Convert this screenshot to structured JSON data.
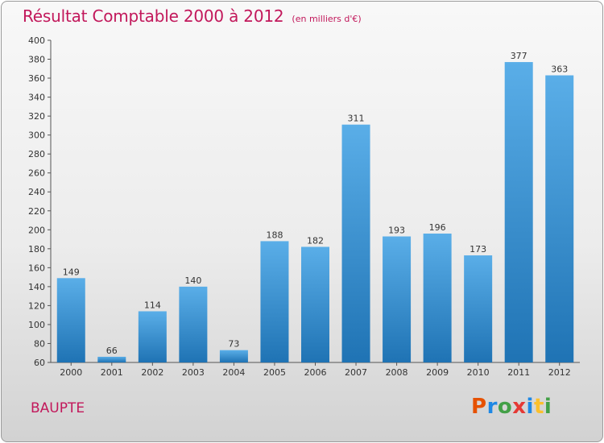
{
  "header": {
    "title": "Résultat Comptable 2000 à 2012",
    "subtitle": "(en milliers d'€)"
  },
  "footer": {
    "commune": "BAUPTE",
    "logo_text": "Proxiti",
    "logo_colors": [
      "#e65100",
      "#1e88e5",
      "#43a047",
      "#e53935",
      "#1e88e5",
      "#fbc02d",
      "#43a047"
    ]
  },
  "colors": {
    "title": "#c2185b",
    "bar_top": "#5aaee8",
    "bar_bottom": "#1f73b4"
  },
  "chart_data": {
    "type": "bar",
    "title": "Résultat Comptable 2000 à 2012",
    "subtitle": "(en milliers d'€)",
    "xlabel": "",
    "ylabel": "",
    "categories": [
      "2000",
      "2001",
      "2002",
      "2003",
      "2004",
      "2005",
      "2006",
      "2007",
      "2008",
      "2009",
      "2010",
      "2011",
      "2012"
    ],
    "values": [
      149,
      66,
      114,
      140,
      73,
      188,
      182,
      311,
      193,
      196,
      173,
      377,
      363
    ],
    "ylim": [
      60,
      400
    ],
    "ytick_step": 20,
    "grid": false,
    "legend": "none",
    "data_labels": true
  }
}
